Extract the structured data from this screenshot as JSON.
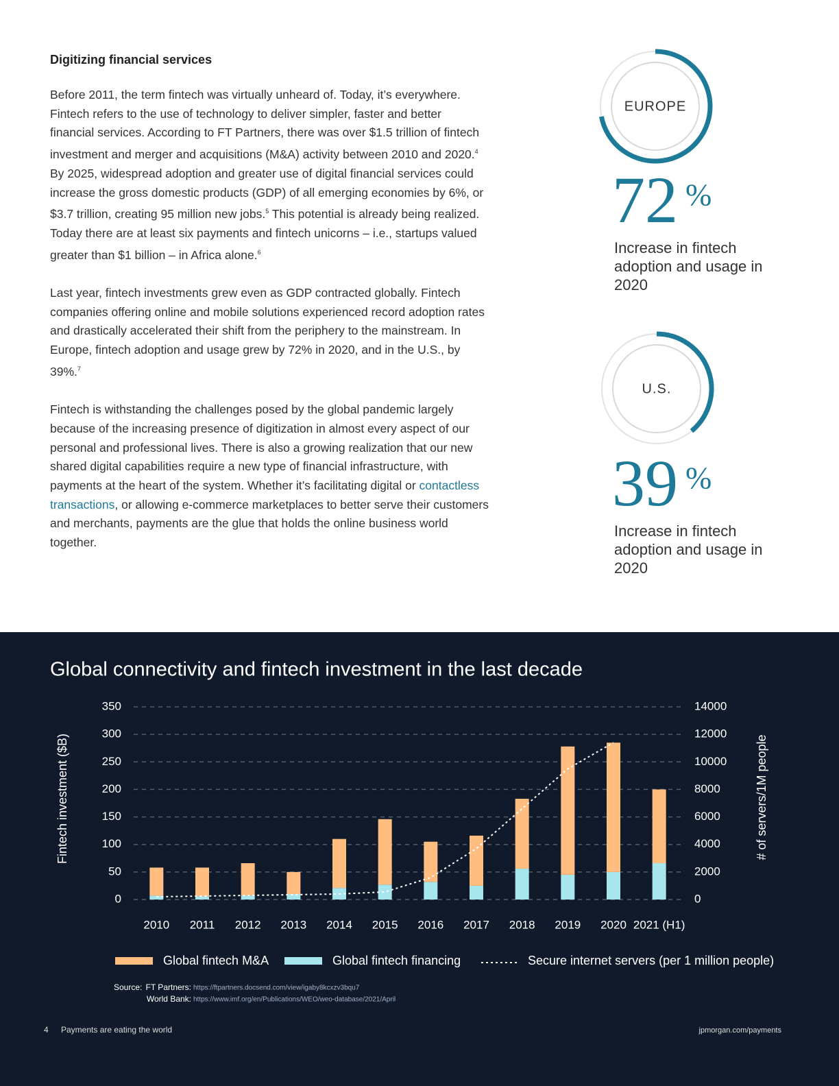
{
  "heading": "Digitizing financial services",
  "paragraphs": [
    [
      {
        "t": "Before 2011, the term fintech was virtually unheard of. Today, it’s everywhere. Fintech refers to the use of technology to deliver simpler, faster and better financial services. According to FT Partners, there was over $1.5 trillion of fintech investment and merger and acquisitions (M&A) activity between 2010 and 2020."
      },
      {
        "sup": "4"
      },
      {
        "t": " By 2025, widespread adoption and greater use of digital financial services could increase the gross domestic products (GDP) of all emerging economies by 6%, or $3.7 trillion, creating 95 million new jobs."
      },
      {
        "sup": "5"
      },
      {
        "t": " This potential is already being realized. Today there are at least six payments and fintech unicorns – i.e., startups valued greater than $1 billion – in Africa alone."
      },
      {
        "sup": "6"
      }
    ],
    [
      {
        "t": "Last year, fintech investments grew even as GDP contracted globally. Fintech companies offering online and mobile solutions experienced record adoption rates and drastically accelerated their shift from the periphery to the mainstream. In Europe, fintech adoption and usage grew by 72% in 2020, and in the U.S., by 39%."
      },
      {
        "sup": "7"
      }
    ],
    [
      {
        "t": "Fintech is withstanding the challenges posed by the global pandemic largely because of the increasing presence of digitization in almost every aspect of our personal and professional lives. There is also a growing realization that our new shared digital capabilities require a new type of financial infrastructure, with payments at the heart of the system. Whether it’s facilitating digital or "
      },
      {
        "link": "contactless transactions"
      },
      {
        "t": ", or allowing e-commerce marketplaces to better serve their customers and merchants, payments are the glue that holds the online business world together."
      }
    ]
  ],
  "stats": [
    {
      "region": "EUROPE",
      "value": 72,
      "unit": "%",
      "caption": "Increase in fintech adoption and usage in 2020",
      "color": "#1e7a99"
    },
    {
      "region": "U.S.",
      "value": 39,
      "unit": "%",
      "caption": "Increase in fintech adoption and usage in 2020",
      "color": "#1e7a99"
    }
  ],
  "chart_data": {
    "type": "bar",
    "stacked": true,
    "title": "Global connectivity and fintech investment in the last decade",
    "y_label": "Fintech investment ($B)",
    "y2_label": "# of servers/1M people",
    "categories": [
      "2010",
      "2011",
      "2012",
      "2013",
      "2014",
      "2015",
      "2016",
      "2017",
      "2018",
      "2019",
      "2020",
      "2021 (H1)"
    ],
    "series": [
      {
        "name": "Global fintech M&A",
        "color": "#ffbd80",
        "values": [
          51,
          52,
          59,
          40,
          89,
          119,
          73,
          91,
          127,
          233,
          235,
          134
        ]
      },
      {
        "name": "Global fintech financing",
        "color": "#a8e6ee",
        "values": [
          7,
          6,
          7,
          10,
          21,
          27,
          32,
          25,
          56,
          45,
          50,
          66
        ]
      },
      {
        "name": "Secure internet servers (per 1 million people)",
        "type": "line",
        "axis": "y2",
        "color": "#ffffff",
        "values": [
          200,
          250,
          300,
          350,
          400,
          550,
          1600,
          3700,
          6600,
          9500,
          11400,
          null
        ]
      }
    ],
    "ylim": [
      0,
      350
    ],
    "yticks": [
      0,
      50,
      100,
      150,
      200,
      250,
      300,
      350
    ],
    "y2lim": [
      0,
      14000
    ],
    "y2ticks": [
      0,
      2000,
      4000,
      6000,
      8000,
      10000,
      12000,
      14000
    ],
    "grid": true
  },
  "source": {
    "label": "Source:",
    "lines": [
      {
        "name": "FT Partners:",
        "url": "https://ftpartners.docsend.com/view/igaby8kcxzv3bqu7"
      },
      {
        "name": "World Bank:",
        "url": "https://www.imf.org/en/Publications/WEO/weo-database/2021/April"
      }
    ]
  },
  "footer": {
    "page": "4",
    "title": "Payments are eating the world",
    "url": "jpmorgan.com/payments"
  }
}
